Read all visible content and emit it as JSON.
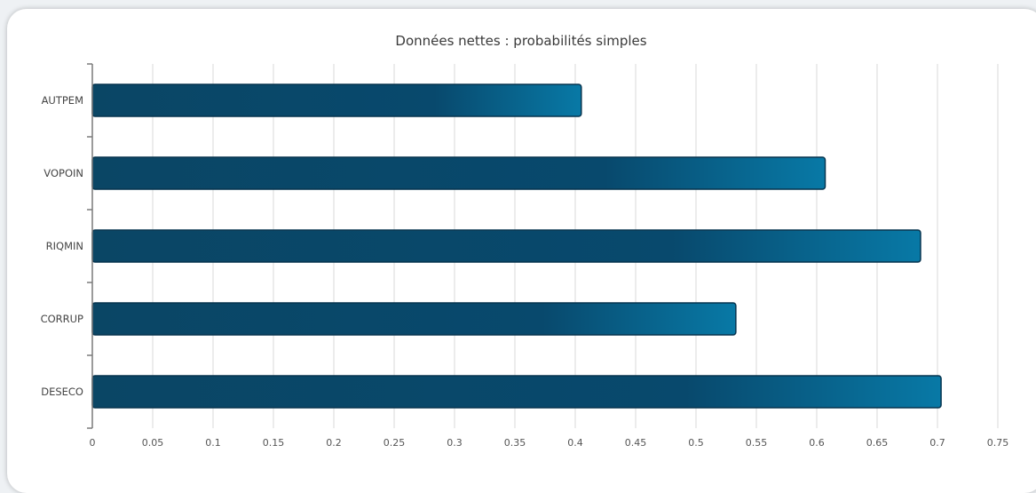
{
  "chart_data": {
    "type": "bar",
    "orientation": "horizontal",
    "title": "Données nettes : probabilités simples",
    "xlabel": "",
    "ylabel": "",
    "categories": [
      "AUTPEM",
      "VOPOIN",
      "RIQMIN",
      "CORRUP",
      "DESECO"
    ],
    "values": [
      0.405,
      0.607,
      0.686,
      0.533,
      0.703
    ],
    "xlim": [
      0,
      0.75
    ],
    "xticks": [
      "0",
      "0.05",
      "0.1",
      "0.15",
      "0.2",
      "0.25",
      "0.3",
      "0.35",
      "0.4",
      "0.45",
      "0.5",
      "0.55",
      "0.6",
      "0.65",
      "0.7",
      "0.75"
    ],
    "grid": "vertical",
    "legend": "none",
    "colors": {
      "bar_dark": "#08486b",
      "bar_light": "#0a7aa6",
      "bar_border": "#06344f",
      "grid": "#d9d9d9",
      "axis": "#7a7a7a"
    }
  }
}
